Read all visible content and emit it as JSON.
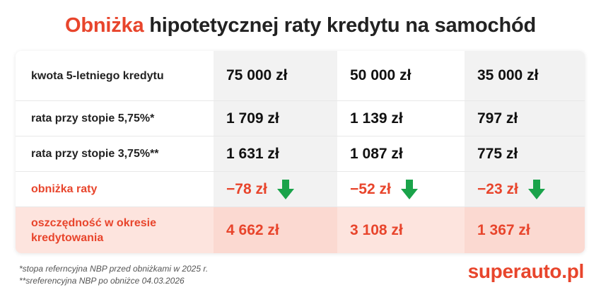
{
  "title": {
    "accent": "Obniżka",
    "rest": " hipotetycznej raty kredytu na samochód"
  },
  "table": {
    "rows": [
      {
        "label": "kwota 5-letniego kredytu",
        "values": [
          "75 000 zł",
          "50 000 zł",
          "35 000 zł"
        ]
      },
      {
        "label": "rata przy stopie 5,75%*",
        "values": [
          "1 709 zł",
          "1 139 zł",
          "797 zł"
        ]
      },
      {
        "label": "rata przy stopie 3,75%**",
        "values": [
          "1 631 zł",
          "1 087 zł",
          "775 zł"
        ]
      },
      {
        "label": "obniżka raty",
        "values": [
          "−78 zł",
          "−52 zł",
          "−23 zł"
        ],
        "icon": "arrow-down-icon"
      },
      {
        "label": "oszczędność w okresie kredytowania",
        "values": [
          "4 662 zł",
          "3 108 zł",
          "1 367 zł"
        ]
      }
    ]
  },
  "footnotes": [
    "*stopa referncyjna NBP przed obniżkami w 2025 r.",
    "**sreferencyjna NBP po obniżce 04.03.2026"
  ],
  "brand": "superauto.pl",
  "colors": {
    "accent": "#e8452c",
    "arrow": "#1aa34a",
    "savings_row": "#fde4de",
    "shaded_column": "#f2f2f2"
  }
}
